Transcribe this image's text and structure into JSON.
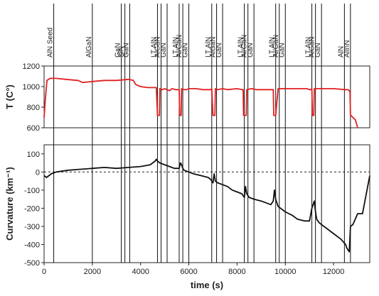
{
  "chart_data": [
    {
      "type": "line",
      "ylabel": "T (C°)",
      "ylim": [
        600,
        1200
      ],
      "yticks": [
        600,
        800,
        1000,
        1200
      ],
      "xlim": [
        0,
        13500
      ],
      "series": [
        {
          "color": "#e02020",
          "x": [
            0,
            60,
            120,
            250,
            500,
            900,
            1400,
            1600,
            2000,
            2500,
            3000,
            3500,
            3700,
            3800,
            4000,
            4300,
            4600,
            4650,
            4700,
            4720,
            4740,
            4780,
            4800,
            4900,
            5000,
            5100,
            5200,
            5300,
            5450,
            5600,
            5620,
            5640,
            5680,
            5700,
            5800,
            5900,
            6000,
            6300,
            6600,
            6900,
            6950,
            7000,
            7040,
            7060,
            7080,
            7100,
            7200,
            7400,
            7600,
            8000,
            8200,
            8250,
            8270,
            8300,
            8340,
            8360,
            8380,
            8400,
            8600,
            8800,
            9000,
            9400,
            9450,
            9500,
            9520,
            9540,
            9580,
            9600,
            9700,
            10000,
            10500,
            10900,
            11000,
            11050,
            11100,
            11120,
            11140,
            11180,
            11200,
            11300,
            11500,
            12000,
            12500,
            12600,
            12650,
            12680,
            12700,
            12720,
            12800,
            12900,
            13000
          ],
          "values": [
            700,
            900,
            1060,
            1080,
            1080,
            1070,
            1060,
            1040,
            1050,
            1060,
            1060,
            1070,
            1060,
            1020,
            1000,
            990,
            990,
            990,
            720,
            720,
            720,
            720,
            980,
            970,
            980,
            970,
            960,
            980,
            970,
            970,
            720,
            720,
            720,
            980,
            970,
            970,
            980,
            980,
            970,
            970,
            980,
            720,
            720,
            720,
            720,
            980,
            970,
            980,
            970,
            980,
            970,
            970,
            720,
            720,
            720,
            720,
            720,
            970,
            980,
            970,
            970,
            970,
            970,
            970,
            720,
            720,
            720,
            720,
            980,
            980,
            980,
            980,
            970,
            970,
            980,
            720,
            720,
            720,
            980,
            980,
            980,
            980,
            970,
            970,
            960,
            950,
            720,
            720,
            700,
            680,
            600
          ]
        }
      ]
    },
    {
      "type": "line",
      "xlabel": "time (s)",
      "ylabel": "Curvature (km⁻¹)",
      "ylim": [
        -500,
        150
      ],
      "yticks": [
        -500,
        -400,
        -300,
        -200,
        -100,
        0,
        100
      ],
      "xlim": [
        0,
        13500
      ],
      "xticks": [
        0,
        2000,
        4000,
        6000,
        8000,
        10000,
        12000
      ],
      "series": [
        {
          "color": "#111111",
          "x": [
            0,
            100,
            300,
            500,
            1000,
            1500,
            2000,
            2500,
            3000,
            3500,
            4000,
            4400,
            4600,
            4650,
            4700,
            4800,
            5000,
            5200,
            5400,
            5600,
            5650,
            5700,
            5750,
            5800,
            6000,
            6200,
            6500,
            6800,
            6900,
            7000,
            7050,
            7100,
            7200,
            7400,
            7600,
            7800,
            8000,
            8200,
            8300,
            8350,
            8400,
            8500,
            8700,
            9000,
            9200,
            9400,
            9500,
            9550,
            9600,
            9700,
            10000,
            10300,
            10500,
            10800,
            11000,
            11100,
            11200,
            11250,
            11300,
            11400,
            11600,
            12000,
            12300,
            12500,
            12550,
            12600,
            12650,
            12700,
            12800,
            13000,
            13200,
            13500
          ],
          "values": [
            -20,
            -30,
            -10,
            0,
            10,
            15,
            20,
            25,
            20,
            25,
            30,
            40,
            60,
            70,
            60,
            50,
            40,
            30,
            20,
            20,
            50,
            40,
            20,
            10,
            0,
            -10,
            -20,
            -30,
            -40,
            -60,
            -10,
            -50,
            -60,
            -70,
            -80,
            -100,
            -110,
            -120,
            -140,
            -80,
            -120,
            -140,
            -150,
            -160,
            -170,
            -180,
            -160,
            -100,
            -150,
            -190,
            -220,
            -240,
            -260,
            -270,
            -270,
            -200,
            -160,
            -220,
            -260,
            -280,
            -300,
            -340,
            -370,
            -400,
            -420,
            -430,
            -440,
            -300,
            -290,
            -230,
            -230,
            -20
          ]
        }
      ]
    }
  ],
  "layer_markers": [
    {
      "label": "AlN Seed",
      "x": 400
    },
    {
      "label": "AlGaN",
      "x": 2000
    },
    {
      "label": "GaN",
      "x": 3200
    },
    {
      "label": "SiN",
      "x": 3350
    },
    {
      "label": "GaN",
      "x": 3550
    },
    {
      "label": "LT AlN",
      "x": 4700
    },
    {
      "label": "AlGaN",
      "x": 4850
    },
    {
      "label": "GaN",
      "x": 5100
    },
    {
      "label": "LT AlN",
      "x": 5600
    },
    {
      "label": "Al/GaN",
      "x": 5750
    },
    {
      "label": "GaN",
      "x": 6000
    },
    {
      "label": "LT AlN",
      "x": 6950
    },
    {
      "label": "AlGaN",
      "x": 7150
    },
    {
      "label": "GaN",
      "x": 7400
    },
    {
      "label": "LT AlN",
      "x": 8300
    },
    {
      "label": "Al/GaN",
      "x": 8450
    },
    {
      "label": "GaN",
      "x": 8700
    },
    {
      "label": "LT AlN",
      "x": 9600
    },
    {
      "label": "Al/GaN",
      "x": 9750
    },
    {
      "label": "GaN",
      "x": 10000
    },
    {
      "label": "LT AlN",
      "x": 11100
    },
    {
      "label": "AlGaN",
      "x": 11250
    },
    {
      "label": "GaN",
      "x": 11500
    },
    {
      "label": "AlN",
      "x": 12450
    },
    {
      "label": "AlInN",
      "x": 12700
    }
  ]
}
